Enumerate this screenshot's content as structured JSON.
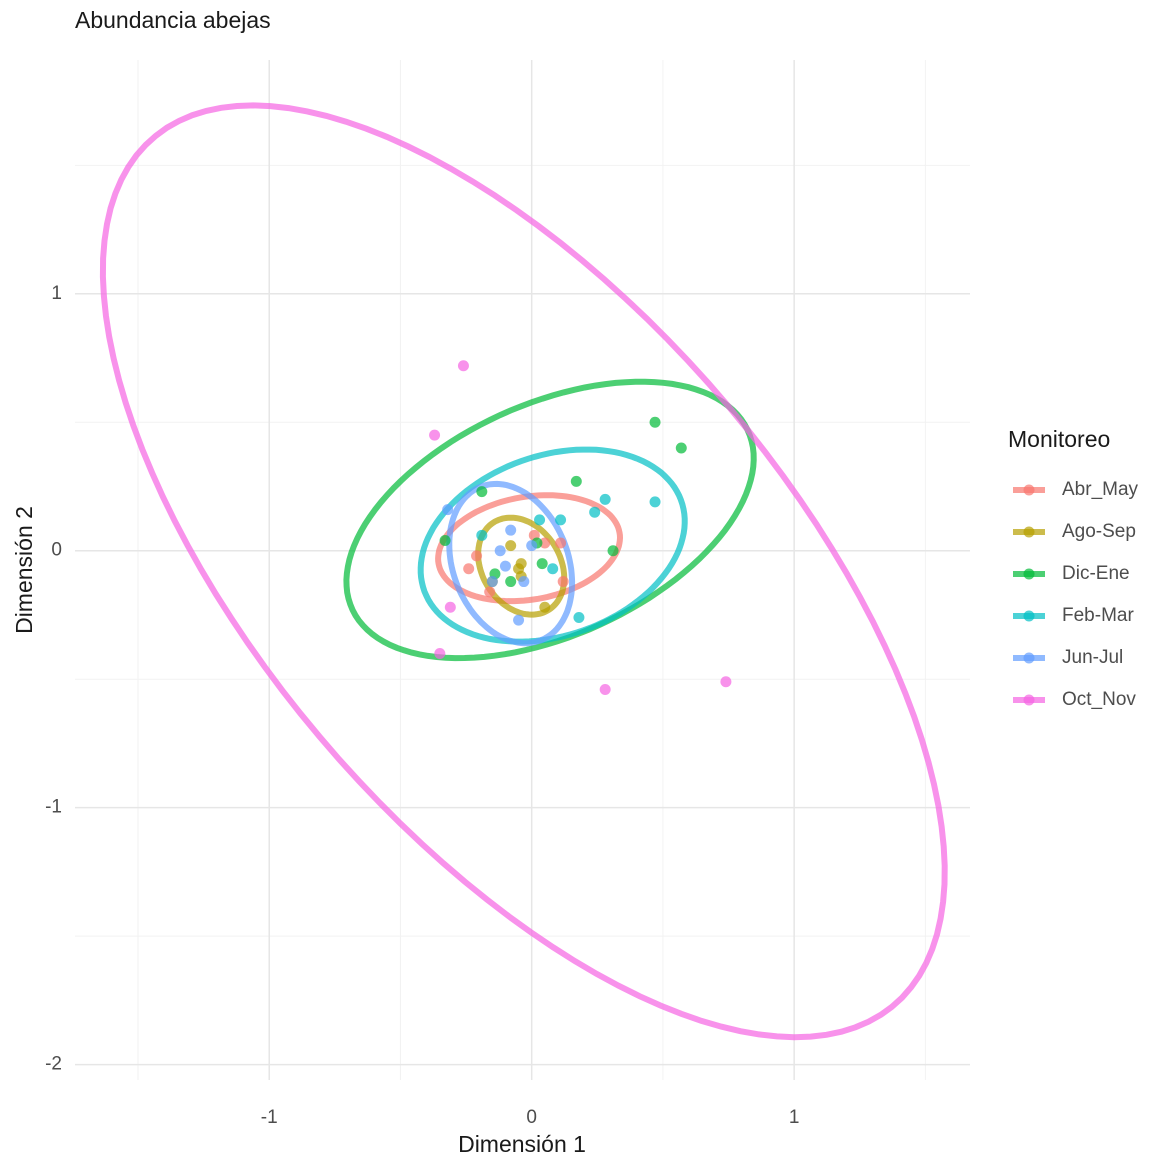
{
  "chart_data": {
    "type": "scatter",
    "title": "Abundancia abejas",
    "x_label": "Dimensión 1",
    "y_label": "Dimensión 2",
    "legend_title": "Monitoreo",
    "xlim": [
      -1.74,
      1.67
    ],
    "ylim": [
      -2.06,
      1.91
    ],
    "xticks": [
      -1,
      0,
      1
    ],
    "yticks": [
      -2,
      -1,
      0,
      1
    ],
    "xminorticks": [
      -1.5,
      -0.5,
      0.5,
      1.5
    ],
    "yminorticks": [
      -1.5,
      -0.5,
      0.5,
      1.5
    ],
    "grid": true,
    "legend": "right",
    "series": [
      {
        "name": "Abr_May",
        "color": "#F8766D",
        "x": [
          -0.21,
          -0.24,
          0.11,
          0.05,
          -0.16,
          0.12,
          0.01
        ],
        "values": [
          -0.02,
          -0.07,
          0.03,
          0.03,
          -0.16,
          -0.12,
          0.06
        ],
        "ellipse": {
          "cx": -0.01,
          "cy": 0.01,
          "rx": 0.35,
          "ry": 0.2,
          "angle": 10
        }
      },
      {
        "name": "Ago-Sep",
        "color": "#B79F00",
        "x": [
          -0.04,
          -0.08,
          -0.04,
          0.05,
          -0.15,
          -0.05
        ],
        "values": [
          -0.05,
          0.02,
          -0.1,
          -0.22,
          -0.12,
          -0.07
        ],
        "ellipse": {
          "cx": -0.04,
          "cy": -0.06,
          "rx": 0.2,
          "ry": 0.15,
          "angle": -60
        }
      },
      {
        "name": "Dic-Ene",
        "color": "#00BA38",
        "x": [
          0.47,
          0.57,
          0.17,
          -0.19,
          0.31,
          -0.33,
          -0.14,
          0.02,
          0.04,
          -0.08
        ],
        "values": [
          0.5,
          0.4,
          0.27,
          0.23,
          0.0,
          0.04,
          -0.09,
          0.03,
          -0.05,
          -0.12
        ],
        "ellipse": {
          "cx": 0.07,
          "cy": 0.12,
          "rx": 0.83,
          "ry": 0.45,
          "angle": 25
        }
      },
      {
        "name": "Feb-Mar",
        "color": "#00BFC4",
        "x": [
          0.28,
          0.47,
          0.24,
          0.11,
          0.18,
          0.03,
          -0.19,
          0.08
        ],
        "values": [
          0.2,
          0.19,
          0.15,
          0.12,
          -0.26,
          0.12,
          0.06,
          -0.07
        ],
        "ellipse": {
          "cx": 0.08,
          "cy": 0.02,
          "rx": 0.52,
          "ry": 0.35,
          "angle": 20
        }
      },
      {
        "name": "Jun-Jul",
        "color": "#619CFF",
        "x": [
          -0.32,
          -0.08,
          -0.12,
          -0.15,
          -0.03,
          -0.05,
          0.0,
          -0.1
        ],
        "values": [
          0.16,
          0.08,
          0.0,
          -0.12,
          -0.12,
          -0.27,
          0.02,
          -0.06
        ],
        "ellipse": {
          "cx": -0.08,
          "cy": -0.05,
          "rx": 0.32,
          "ry": 0.22,
          "angle": -70
        }
      },
      {
        "name": "Oct_Nov",
        "color": "#F564E3",
        "x": [
          -0.26,
          -0.37,
          -0.31,
          -0.35,
          0.28,
          0.74
        ],
        "values": [
          0.72,
          0.45,
          -0.22,
          -0.4,
          -0.54,
          -0.51
        ],
        "ellipse": {
          "cx": -0.03,
          "cy": -0.08,
          "rx": 2.2,
          "ry": 1.01,
          "angle": -50.4
        }
      }
    ]
  }
}
